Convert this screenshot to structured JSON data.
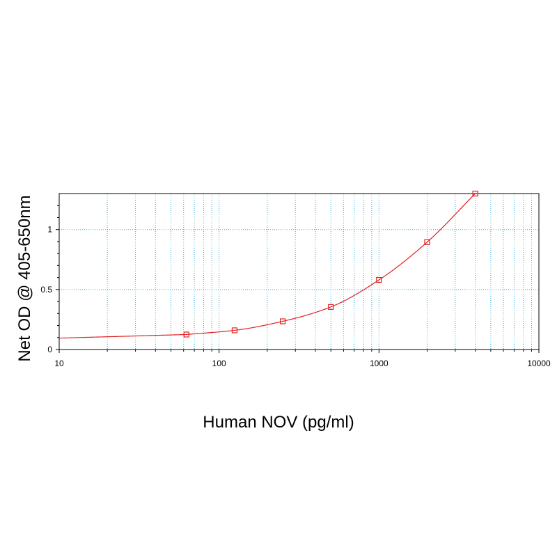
{
  "chart_data": {
    "type": "line",
    "title": "",
    "xlabel": "Human NOV (pg/ml)",
    "ylabel": "Net OD @ 405-650nm",
    "x_scale": "log",
    "xlim": [
      10,
      10000
    ],
    "ylim": [
      0,
      1.3
    ],
    "grid": true,
    "x_ticks": [
      10,
      100,
      1000,
      10000
    ],
    "x_tick_labels": [
      "10",
      "100",
      "1000",
      "10000"
    ],
    "y_ticks": [
      0,
      0.5,
      1
    ],
    "y_tick_labels": [
      "0",
      "0.5",
      "1"
    ],
    "series": [
      {
        "x": [
          62.5,
          125,
          250,
          500,
          1000,
          2000,
          4000
        ],
        "y": [
          0.125,
          0.16,
          0.235,
          0.355,
          0.58,
          0.895,
          1.3
        ]
      }
    ],
    "colors": {
      "series": "#e02020",
      "grid": "#3aaed8",
      "axis": "#000000"
    }
  }
}
